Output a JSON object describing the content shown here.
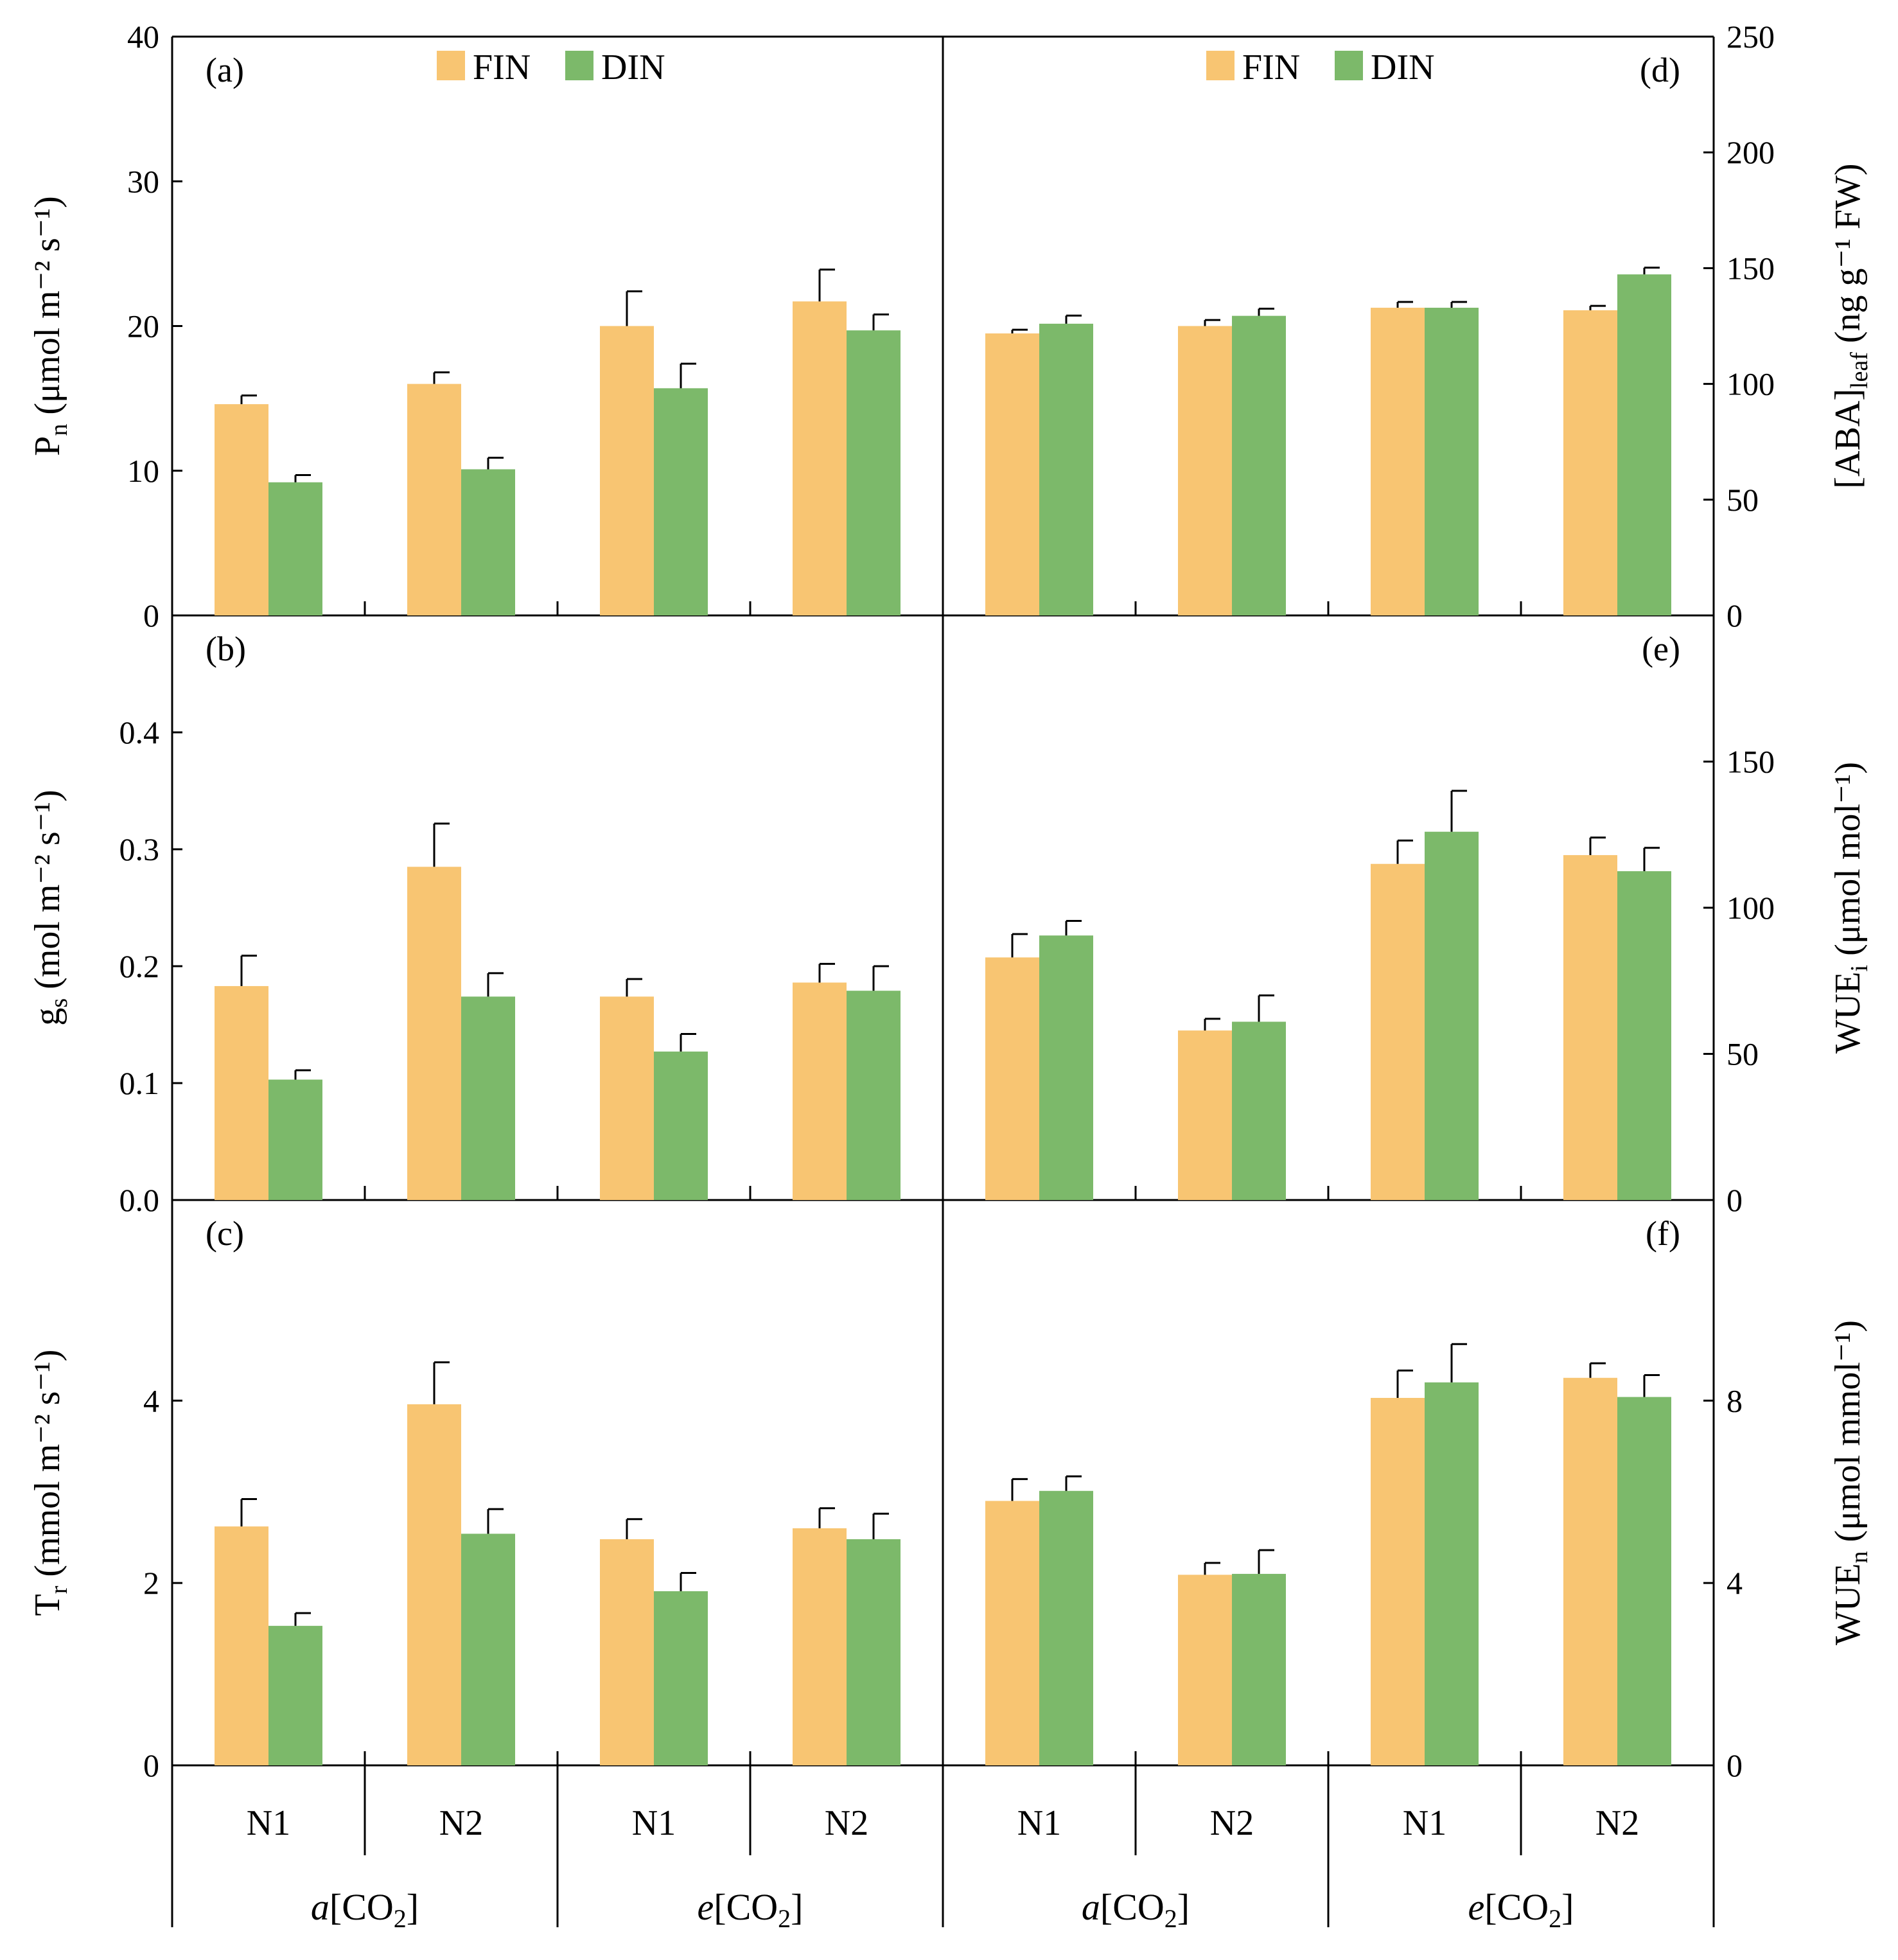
{
  "colors": {
    "FIN": "#F8C572",
    "DIN": "#7CB96A"
  },
  "legend": [
    {
      "key": "FIN",
      "label": "FIN"
    },
    {
      "key": "DIN",
      "label": "DIN"
    }
  ],
  "x_axis": {
    "categories": [
      "N1",
      "N2",
      "N1",
      "N2"
    ],
    "groups": [
      {
        "italic": "a",
        "rest": "[CO",
        "sub": "2",
        "close": "]"
      },
      {
        "italic": "e",
        "rest": "[CO",
        "sub": "2",
        "close": "]"
      }
    ]
  },
  "chart_data": [
    {
      "type": "bar",
      "panel": "(a)",
      "side": "left",
      "ylabel": {
        "main": "P",
        "sub": "n",
        "units": " (μmol m⁻² s⁻¹)"
      },
      "ylim": [
        0,
        40
      ],
      "yticks": [
        "0",
        "10",
        "20",
        "30",
        "40"
      ],
      "ytick_values": [
        0,
        10,
        20,
        30,
        40
      ],
      "show_legend": true,
      "categories": [
        "a[CO2] N1",
        "a[CO2] N2",
        "e[CO2] N1",
        "e[CO2] N2"
      ],
      "series": [
        {
          "name": "FIN",
          "values": [
            14.6,
            16.0,
            20.0,
            21.7
          ],
          "errors": [
            0.6,
            0.8,
            2.4,
            2.2
          ]
        },
        {
          "name": "DIN",
          "values": [
            9.2,
            10.1,
            15.7,
            19.7
          ],
          "errors": [
            0.5,
            0.8,
            1.7,
            1.1
          ]
        }
      ]
    },
    {
      "type": "bar",
      "panel": "(b)",
      "side": "left",
      "ylabel": {
        "main": "g",
        "sub": "s",
        "units": " (mol m⁻² s⁻¹)"
      },
      "ylim": [
        0,
        0.5
      ],
      "yticks": [
        "0.0",
        "0.1",
        "0.2",
        "0.3",
        "0.4"
      ],
      "ytick_values": [
        0,
        0.1,
        0.2,
        0.3,
        0.4
      ],
      "show_legend": false,
      "categories": [
        "a[CO2] N1",
        "a[CO2] N2",
        "e[CO2] N1",
        "e[CO2] N2"
      ],
      "series": [
        {
          "name": "FIN",
          "values": [
            0.183,
            0.285,
            0.174,
            0.186
          ],
          "errors": [
            0.026,
            0.037,
            0.015,
            0.016
          ]
        },
        {
          "name": "DIN",
          "values": [
            0.103,
            0.174,
            0.127,
            0.179
          ],
          "errors": [
            0.008,
            0.02,
            0.015,
            0.021
          ]
        }
      ]
    },
    {
      "type": "bar",
      "panel": "(c)",
      "side": "left",
      "ylabel": {
        "main": "T",
        "sub": "r",
        "units": " (mmol m⁻² s⁻¹)"
      },
      "ylim": [
        0,
        6.2
      ],
      "yticks": [
        "0",
        "2",
        "4"
      ],
      "ytick_values": [
        0,
        2,
        4
      ],
      "show_legend": false,
      "categories": [
        "a[CO2] N1",
        "a[CO2] N2",
        "e[CO2] N1",
        "e[CO2] N2"
      ],
      "series": [
        {
          "name": "FIN",
          "values": [
            2.62,
            3.96,
            2.48,
            2.6
          ],
          "errors": [
            0.3,
            0.46,
            0.22,
            0.22
          ]
        },
        {
          "name": "DIN",
          "values": [
            1.53,
            2.54,
            1.91,
            2.48
          ],
          "errors": [
            0.14,
            0.27,
            0.2,
            0.28
          ]
        }
      ]
    },
    {
      "type": "bar",
      "panel": "(d)",
      "side": "right",
      "ylabel": {
        "main": "[ABA]",
        "sub": "leaf",
        "units": " (ng g⁻¹ FW)"
      },
      "ylim": [
        0,
        250
      ],
      "yticks": [
        "0",
        "50",
        "100",
        "150",
        "200",
        "250"
      ],
      "ytick_values": [
        0,
        50,
        100,
        150,
        200,
        250
      ],
      "show_legend": true,
      "categories": [
        "a[CO2] N1",
        "a[CO2] N2",
        "e[CO2] N1",
        "e[CO2] N2"
      ],
      "series": [
        {
          "name": "FIN",
          "values": [
            121.8,
            125.0,
            132.9,
            131.8
          ],
          "errors": [
            1.6,
            2.6,
            2.5,
            1.9
          ]
        },
        {
          "name": "DIN",
          "values": [
            126.0,
            129.4,
            132.9,
            147.3
          ],
          "errors": [
            3.5,
            3.1,
            2.5,
            2.9
          ]
        }
      ]
    },
    {
      "type": "bar",
      "panel": "(e)",
      "side": "right",
      "ylabel": {
        "main": "WUE",
        "sub": "i",
        "units": " (μmol mol⁻¹)"
      },
      "ylim": [
        0,
        200
      ],
      "yticks": [
        "0",
        "50",
        "100",
        "150"
      ],
      "ytick_values": [
        0,
        50,
        100,
        150
      ],
      "show_legend": false,
      "categories": [
        "a[CO2] N1",
        "a[CO2] N2",
        "e[CO2] N1",
        "e[CO2] N2"
      ],
      "series": [
        {
          "name": "FIN",
          "values": [
            83.0,
            58.0,
            115.0,
            118.0
          ],
          "errors": [
            8.0,
            4.0,
            8.0,
            6.0
          ]
        },
        {
          "name": "DIN",
          "values": [
            90.5,
            61.0,
            126.0,
            112.5
          ],
          "errors": [
            5.0,
            9.0,
            14.0,
            8.0
          ]
        }
      ]
    },
    {
      "type": "bar",
      "panel": "(f)",
      "side": "right",
      "ylabel": {
        "main": "WUE",
        "sub": "n",
        "units": " (μmol mmol⁻¹)"
      },
      "ylim": [
        0,
        12.4
      ],
      "yticks": [
        "0",
        "4",
        "8"
      ],
      "ytick_values": [
        0,
        4,
        8
      ],
      "show_legend": false,
      "categories": [
        "a[CO2] N1",
        "a[CO2] N2",
        "e[CO2] N1",
        "e[CO2] N2"
      ],
      "series": [
        {
          "name": "FIN",
          "values": [
            5.8,
            4.18,
            8.06,
            8.5
          ],
          "errors": [
            0.48,
            0.26,
            0.6,
            0.32
          ]
        },
        {
          "name": "DIN",
          "values": [
            6.02,
            4.2,
            8.4,
            8.08
          ],
          "errors": [
            0.32,
            0.52,
            0.84,
            0.48
          ]
        }
      ]
    }
  ]
}
